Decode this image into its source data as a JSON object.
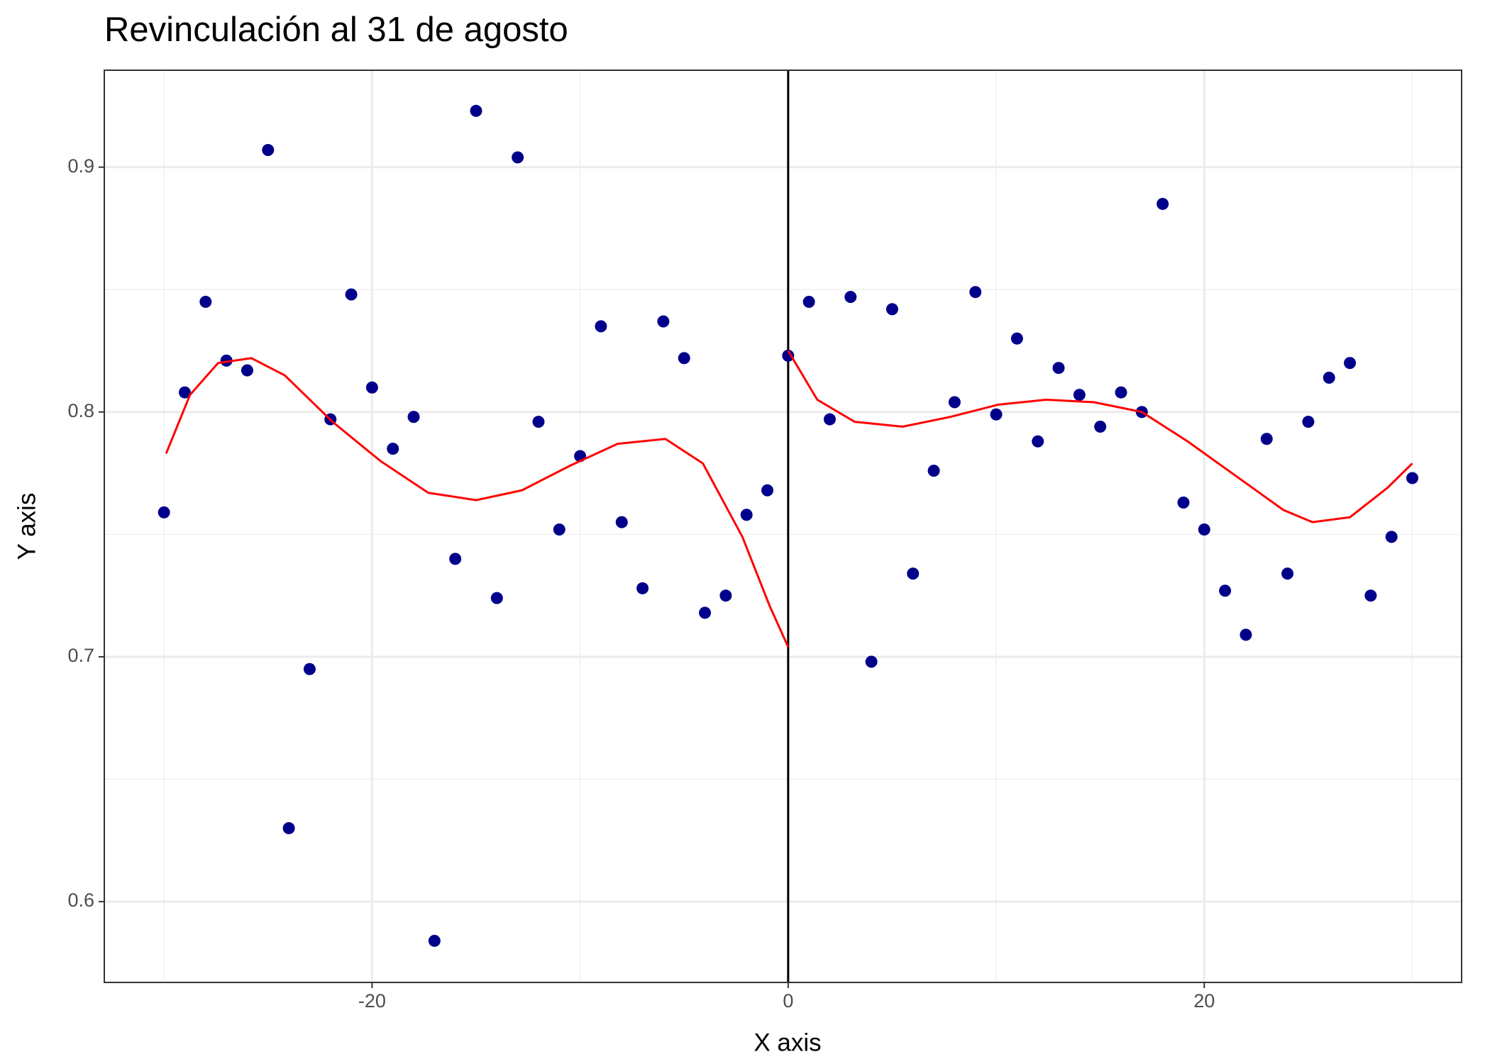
{
  "chart_data": {
    "type": "scatter",
    "title": "Revinculación al 31 de agosto",
    "x_label": "X axis",
    "y_label": "Y axis",
    "xlim": [
      -32.87,
      32.37
    ],
    "ylim": [
      0.567,
      0.9396
    ],
    "xticks": [
      -20,
      0,
      20
    ],
    "yticks": [
      0.6,
      0.7,
      0.8,
      0.9
    ],
    "minor_xticks": [
      -30,
      -10,
      10,
      30
    ],
    "minor_yticks": [
      0.65,
      0.75,
      0.85
    ],
    "grid": true,
    "vlines": [
      0
    ],
    "series": [
      {
        "mode": "markers",
        "color": "#00008b",
        "x": [
          -30,
          -29,
          -28,
          -27,
          -26,
          -25,
          -24,
          -23,
          -22,
          -21,
          -20,
          -19,
          -18,
          -17,
          -16,
          -15,
          -14,
          -13,
          -12,
          -11,
          -10,
          -9,
          -8,
          -7,
          -6,
          -5,
          -4,
          -3,
          -2,
          -1,
          0,
          1,
          2,
          3,
          4,
          5,
          6,
          7,
          8,
          9,
          10,
          11,
          12,
          13,
          14,
          15,
          16,
          17,
          18,
          19,
          20,
          21,
          22,
          23,
          24,
          25,
          26,
          27,
          28,
          29,
          30
        ],
        "values": [
          0.759,
          0.808,
          0.845,
          0.821,
          0.817,
          0.907,
          0.63,
          0.695,
          0.797,
          0.848,
          0.81,
          0.785,
          0.798,
          0.584,
          0.74,
          0.923,
          0.724,
          0.904,
          0.796,
          0.752,
          0.782,
          0.835,
          0.755,
          0.728,
          0.837,
          0.822,
          0.718,
          0.725,
          0.758,
          0.768,
          0.823,
          0.845,
          0.797,
          0.847,
          0.698,
          0.842,
          0.734,
          0.776,
          0.804,
          0.849,
          0.799,
          0.83,
          0.788,
          0.818,
          0.807,
          0.794,
          0.808,
          0.8,
          0.885,
          0.763,
          0.752,
          0.727,
          0.709,
          0.789,
          0.734,
          0.796,
          0.814,
          0.82,
          0.725,
          0.749,
          0.773
        ]
      },
      {
        "mode": "lines",
        "color": "#ff0000",
        "x": [
          -29.9,
          -28.75,
          -27.4,
          -25.8,
          -24.2,
          -21.9,
          -19.6,
          -17.3,
          -15.0,
          -12.8,
          -10.5,
          -8.2,
          -5.9,
          -4.1,
          -2.2,
          -0.9,
          0
        ],
        "values": [
          0.783,
          0.807,
          0.82,
          0.822,
          0.815,
          0.796,
          0.78,
          0.767,
          0.764,
          0.768,
          0.778,
          0.787,
          0.789,
          0.779,
          0.749,
          0.721,
          0.704
        ]
      },
      {
        "mode": "lines",
        "color": "#ff0000",
        "x": [
          0,
          1.4,
          3.2,
          5.5,
          7.8,
          10.1,
          12.4,
          14.7,
          17.0,
          19.2,
          21.5,
          23.8,
          25.2,
          27.0,
          28.8,
          30
        ],
        "values": [
          0.825,
          0.805,
          0.796,
          0.794,
          0.798,
          0.803,
          0.805,
          0.804,
          0.8,
          0.788,
          0.774,
          0.76,
          0.755,
          0.757,
          0.769,
          0.779
        ]
      }
    ]
  }
}
